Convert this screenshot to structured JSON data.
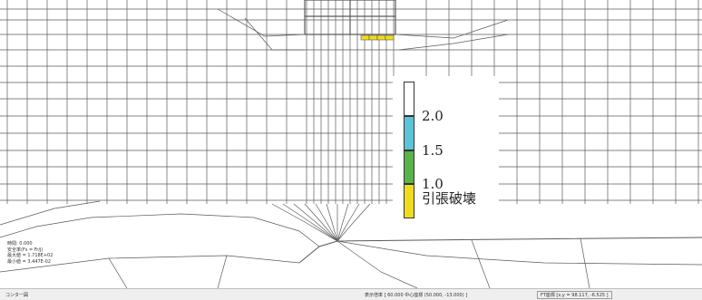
{
  "legend": {
    "items": [
      {
        "color": "#ffffff",
        "label": ""
      },
      {
        "color": "#5bc4d6",
        "label": "2.0"
      },
      {
        "color": "#58b44a",
        "label": "1.5"
      },
      {
        "color": "#f0dc1e",
        "label": "1.0"
      }
    ],
    "bottom_label": "1.0",
    "tension_label": "引張破壊"
  },
  "info": {
    "line1": "時間: 0.000",
    "line2": "安全率(Fs = Fr/J)",
    "line3": "最大値 = 1.718E+02",
    "line4": "最小値 = 3.447E-02"
  },
  "statusbar": {
    "left": "コンター図",
    "display_scale": "表示倍率 [ 60.000   中心座標 (50.000, -13.000) ]",
    "cursor": "FT座標 [x,y = 98.117, -6.525 ]"
  },
  "colors": {
    "mesh": "#5a5a5a",
    "tension": "#f0dc1e"
  }
}
